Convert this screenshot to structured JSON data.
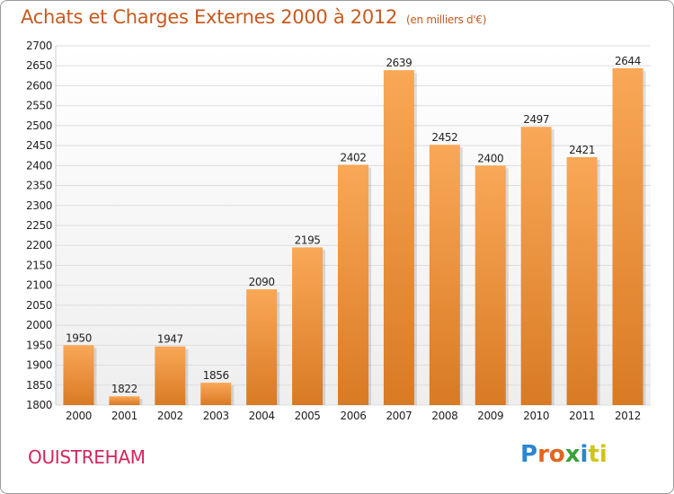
{
  "title": "Achats et Charges Externes 2000 à 2012",
  "unit": "(en milliers d'€)",
  "city": "OUISTREHAM",
  "logo": [
    "P",
    "r",
    "o",
    "x",
    "i",
    "ti"
  ],
  "colors": {
    "title": "#c75a1e",
    "bar_top": "#f9a857",
    "bar_bottom": "#d97a24",
    "grid": "#dddddd",
    "plot_background_top": "#ffffff",
    "plot_background_bottom": "#eeeeee",
    "city": "#d2265c"
  },
  "chart_data": {
    "type": "bar",
    "title": "Achats et Charges Externes 2000 à 2012",
    "categories": [
      "2000",
      "2001",
      "2002",
      "2003",
      "2004",
      "2005",
      "2006",
      "2007",
      "2008",
      "2009",
      "2010",
      "2011",
      "2012"
    ],
    "values": [
      1950,
      1822,
      1947,
      1856,
      2090,
      2195,
      2402,
      2639,
      2452,
      2400,
      2497,
      2421,
      2644
    ],
    "ylim": [
      1800,
      2700
    ],
    "yticks": [
      1800,
      1850,
      1900,
      1950,
      2000,
      2050,
      2100,
      2150,
      2200,
      2250,
      2300,
      2350,
      2400,
      2450,
      2500,
      2550,
      2600,
      2650,
      2700
    ],
    "grid": true,
    "legend": "none",
    "xlabel": "",
    "ylabel": ""
  }
}
